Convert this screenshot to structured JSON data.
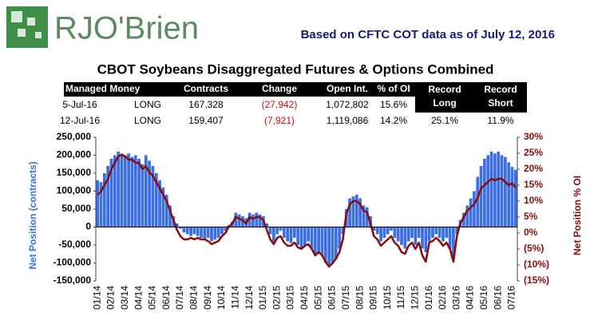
{
  "header": {
    "logo": "RJO'Brien",
    "note": "Based on CFTC COT data as of July 12, 2016"
  },
  "table": {
    "header": [
      "Managed Money",
      "Contracts",
      "Change",
      "Open Int.",
      "% of OI",
      "Record Long",
      "Record Short"
    ],
    "rows": [
      [
        "5-Jul-16",
        "LONG",
        "167,328",
        "(27,942)",
        "1,072,802",
        "15.6%"
      ],
      [
        "12-Jul-16",
        "LONG",
        "159,407",
        "(7,921)",
        "1,119,086",
        "14.2%",
        "25.1%",
        "11.9%"
      ]
    ]
  },
  "chart_data": {
    "type": "bar-line",
    "title": "CBOT Soybeans Disaggregated Futures & Options Combined",
    "ylabel": "Net Position (contracts)",
    "y2label": "Net Position % OI",
    "categories": [
      "01/14",
      null,
      null,
      null,
      "02/14",
      null,
      null,
      null,
      "03/14",
      null,
      null,
      null,
      "04/14",
      null,
      null,
      null,
      "05/14",
      null,
      null,
      null,
      "06/14",
      null,
      null,
      null,
      "07/14",
      null,
      null,
      null,
      "08/14",
      null,
      null,
      null,
      "09/14",
      null,
      null,
      null,
      "10/14",
      null,
      null,
      null,
      "11/14",
      null,
      null,
      null,
      "12/14",
      null,
      null,
      null,
      "01/15",
      null,
      null,
      null,
      "02/15",
      null,
      null,
      null,
      "03/15",
      null,
      null,
      null,
      "04/15",
      null,
      null,
      null,
      "05/15",
      null,
      null,
      null,
      "06/15",
      null,
      null,
      null,
      "07/15",
      null,
      null,
      null,
      "08/15",
      null,
      null,
      null,
      "09/15",
      null,
      null,
      null,
      "10/15",
      null,
      null,
      null,
      "11/15",
      null,
      null,
      null,
      "12/15",
      null,
      null,
      null,
      "01/16",
      null,
      null,
      null,
      "02/16",
      null,
      null,
      null,
      "03/16",
      null,
      null,
      null,
      "04/16",
      null,
      null,
      null,
      "05/16",
      null,
      null,
      null,
      "06/16",
      null,
      null,
      null,
      "07/16",
      null
    ],
    "series": [
      {
        "color": "#3b6fe3",
        "values": [
          130000,
          125000,
          150000,
          170000,
          190000,
          200000,
          210000,
          205000,
          200000,
          205000,
          195000,
          200000,
          190000,
          175000,
          200000,
          185000,
          170000,
          150000,
          130000,
          110000,
          90000,
          60000,
          30000,
          10000,
          -5000,
          -15000,
          -20000,
          -25000,
          -20000,
          -25000,
          -30000,
          -35000,
          -30000,
          -40000,
          -35000,
          -30000,
          -20000,
          -10000,
          5000,
          15000,
          40000,
          35000,
          30000,
          25000,
          40000,
          35000,
          40000,
          35000,
          30000,
          10000,
          -20000,
          -40000,
          -20000,
          -10000,
          -30000,
          -40000,
          -45000,
          -30000,
          -50000,
          -60000,
          -50000,
          -40000,
          -60000,
          -80000,
          -70000,
          -80000,
          -100000,
          -110000,
          -100000,
          -90000,
          -60000,
          -20000,
          50000,
          80000,
          85000,
          90000,
          80000,
          60000,
          55000,
          30000,
          -10000,
          -20000,
          -40000,
          -30000,
          -20000,
          -10000,
          -30000,
          -40000,
          -50000,
          -60000,
          -40000,
          -30000,
          -50000,
          -30000,
          -60000,
          -70000,
          -40000,
          -30000,
          -20000,
          -30000,
          -40000,
          -30000,
          -60000,
          -90000,
          -20000,
          20000,
          40000,
          60000,
          80000,
          100000,
          140000,
          170000,
          190000,
          200000,
          210000,
          205000,
          210000,
          200000,
          195000,
          180000,
          167328,
          159407
        ]
      },
      {
        "color": "#8b0a0a",
        "axis": "y2",
        "values": [
          12,
          13,
          15,
          17,
          20,
          22,
          24,
          24.5,
          24,
          23,
          23,
          22,
          22,
          20,
          21,
          19,
          18,
          16,
          14,
          12,
          10,
          7,
          4,
          1,
          -1,
          -2,
          -2,
          -1.5,
          -2,
          -1.5,
          -2,
          -2,
          -2.5,
          -3.5,
          -3,
          -2.5,
          -1,
          0,
          2,
          3,
          5,
          4.5,
          4,
          3,
          5,
          4.5,
          5,
          5,
          4,
          1,
          -2,
          -3.5,
          -1.5,
          -1,
          -3,
          -4,
          -4,
          -3,
          -4.5,
          -5,
          -4,
          -3.5,
          -5,
          -7,
          -6,
          -7,
          -9,
          -10.5,
          -9.5,
          -8,
          -6,
          -2,
          6,
          9,
          10,
          10,
          9,
          7,
          6.5,
          3,
          -1,
          -2,
          -4,
          -3,
          -2,
          -1,
          -3,
          -4,
          -6,
          -6.5,
          -4,
          -3,
          -5,
          -3,
          -7,
          -9,
          -3,
          -2.5,
          -1.5,
          -2.5,
          -4,
          -3,
          -5,
          -9,
          -1,
          3,
          5,
          7,
          8,
          9,
          11,
          14,
          15,
          16,
          17,
          16.5,
          17,
          17,
          16,
          15,
          15.6,
          14.2
        ]
      }
    ],
    "ylim": [
      -150000,
      250000
    ],
    "yticks": [
      {
        "value": -150000,
        "label": "-150,000"
      },
      {
        "value": -100000,
        "label": "-100,000"
      },
      {
        "value": -50000,
        "label": "-50,000"
      },
      0,
      {
        "value": 50000,
        "label": "50,000"
      },
      {
        "value": 100000,
        "label": "100,000"
      },
      {
        "value": 150000,
        "label": "150,000"
      },
      {
        "value": 200000,
        "label": "200,000"
      },
      {
        "value": 250000,
        "label": "250,000"
      }
    ],
    "y2lim": [
      -15,
      30
    ],
    "y2ticks": [
      {
        "value": -15,
        "label": "(15%)"
      },
      {
        "value": -10,
        "label": "(10%)"
      },
      {
        "value": -5,
        "label": "(5%)"
      },
      {
        "value": 0,
        "label": "0%"
      },
      {
        "value": 5,
        "label": "5%"
      },
      {
        "value": 10,
        "label": "10%"
      },
      {
        "value": 15,
        "label": "15%"
      },
      {
        "value": 20,
        "label": "20%"
      },
      {
        "value": 25,
        "label": "25%"
      },
      {
        "value": 30,
        "label": "30%"
      }
    ],
    "grid": false
  }
}
